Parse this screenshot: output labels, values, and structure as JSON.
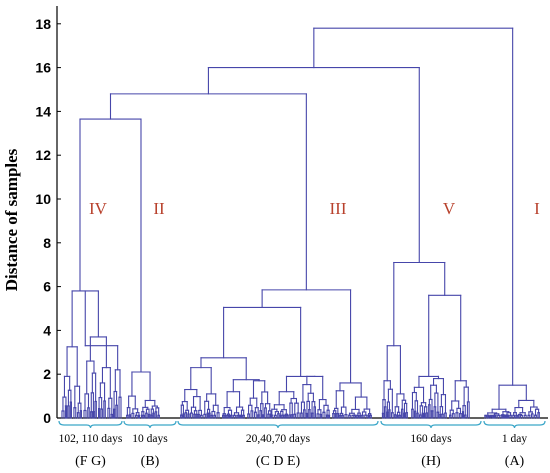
{
  "chart_data": {
    "type": "dendrogram",
    "ylabel": "Distance of samples",
    "ylim": [
      0,
      18.8
    ],
    "yticks": [
      0,
      2,
      4,
      6,
      8,
      10,
      12,
      14,
      16,
      18
    ],
    "grid": false,
    "line_color": "#4646aa",
    "brace_color": "#3aa6c8",
    "label_color": "#b8412c",
    "clusters": [
      {
        "label": "IV",
        "height": 13.65
      },
      {
        "label": "II",
        "height": 13.65
      },
      {
        "label": "III",
        "height": 14.8
      },
      {
        "label": "V",
        "height": 16.0
      },
      {
        "label": "I",
        "height": 17.8
      }
    ],
    "merges": [
      {
        "left": "IV",
        "right": "II",
        "height": 13.65
      },
      {
        "left": "IV+II",
        "right": "III",
        "height": 14.8
      },
      {
        "left": "IV+II+III",
        "right": "V",
        "height": 16.0
      },
      {
        "left": "IV+II+III+V",
        "right": "I",
        "height": 17.8
      }
    ],
    "groups": [
      {
        "days": "102, 110  days",
        "letters": "(F  G)"
      },
      {
        "days": "10  days",
        "letters": "(B)"
      },
      {
        "days": "20,40,70  days",
        "letters": "(C  D  E)"
      },
      {
        "days": "160  days",
        "letters": "(H)"
      },
      {
        "days": "1  day",
        "letters": "(A)"
      }
    ]
  }
}
